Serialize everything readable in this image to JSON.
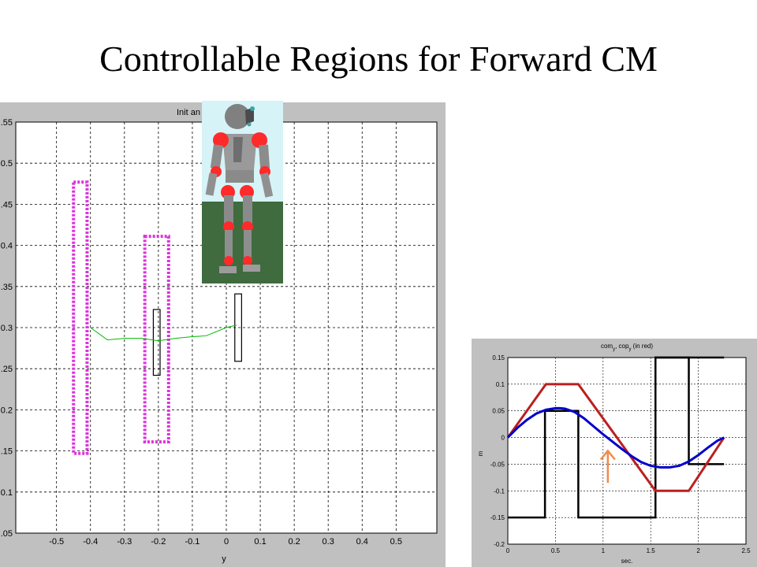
{
  "slide": {
    "title": "Controllable Regions for Forward CM"
  },
  "colors": {
    "frame_gray": "#c0c0c0",
    "region_magenta": "#dd33dd",
    "path_green": "#00bb00",
    "com_blue": "#0000cc",
    "cop_red": "#bb1f1f",
    "step_black": "#000000",
    "arrow_orange": "#f08a4b",
    "robot_sky": "#d6f3f7",
    "robot_ground": "#3f6b3f",
    "robot_joint": "#ff2a2a",
    "robot_body": "#888888"
  },
  "icons": {
    "robot": "humanoid-robot-render",
    "arrow": "up-arrow-icon"
  },
  "chart_data": [
    {
      "type": "line",
      "title": "Init an",
      "xlabel": "y",
      "ylabel": "",
      "xlim": [
        -0.62,
        0.62
      ],
      "ylim": [
        0.05,
        0.55
      ],
      "x_ticks": [
        -0.5,
        -0.4,
        -0.3,
        -0.2,
        -0.1,
        0,
        0.1,
        0.2,
        0.3,
        0.4,
        0.5
      ],
      "x_tick_labels": [
        "-0.5",
        "-0.4",
        "-0.3",
        "-0.2",
        "-0.1",
        "0",
        "0.1",
        "0.2",
        "0.3",
        "0.4",
        "0.5"
      ],
      "y_ticks": [
        0.05,
        0.1,
        0.15,
        0.2,
        0.25,
        0.3,
        0.35,
        0.4,
        0.45,
        0.5,
        0.55
      ],
      "y_tick_labels": [
        ".05",
        "0.1",
        ".15",
        "0.2",
        ".25",
        "0.3",
        ".35",
        "0.4",
        ".45",
        "0.5",
        ".55"
      ],
      "grid": true,
      "series": [
        {
          "x": [
            -0.4,
            -0.35,
            -0.3,
            -0.25,
            -0.2,
            -0.15,
            -0.1,
            -0.06,
            0.0,
            0.03
          ],
          "y": [
            0.3,
            0.285,
            0.287,
            0.287,
            0.284,
            0.287,
            0.289,
            0.29,
            0.3,
            0.303
          ]
        }
      ],
      "regions_dotted": [
        {
          "x": [
            -0.45,
            -0.41
          ],
          "y": [
            0.147,
            0.477
          ]
        },
        {
          "x": [
            -0.24,
            -0.17
          ],
          "y": [
            0.161,
            0.411
          ]
        }
      ],
      "rectangles_solid": [
        {
          "x": [
            -0.215,
            -0.195
          ],
          "y": [
            0.242,
            0.322
          ]
        },
        {
          "x": [
            0.025,
            0.045
          ],
          "y": [
            0.259,
            0.341
          ]
        }
      ]
    },
    {
      "type": "line",
      "title": "com_y, cop_y (in red)",
      "xlabel": "sec.",
      "ylabel": "m",
      "xlim": [
        0,
        2.5
      ],
      "ylim": [
        -0.2,
        0.15
      ],
      "x_ticks": [
        0,
        0.5,
        1,
        1.5,
        2,
        2.5
      ],
      "x_tick_labels": [
        "0",
        "0.5",
        "1",
        "1.5",
        "2",
        "2.5"
      ],
      "y_ticks": [
        -0.2,
        -0.15,
        -0.1,
        -0.05,
        0,
        0.05,
        0.1,
        0.15
      ],
      "y_tick_labels": [
        "-0.2",
        "-0.15",
        "-0.1",
        "-0.05",
        "0",
        "0.05",
        "0.1",
        "0.15"
      ],
      "grid": true,
      "series": [
        {
          "x": [
            0,
            0.1,
            0.2,
            0.3,
            0.4,
            0.5,
            0.55,
            0.6,
            0.7,
            0.8,
            0.9,
            1.0,
            1.1,
            1.2,
            1.3,
            1.4,
            1.5,
            1.6,
            1.7,
            1.8,
            1.9,
            2.0,
            2.1,
            2.2,
            2.27
          ],
          "y": [
            0,
            0.018,
            0.033,
            0.045,
            0.052,
            0.055,
            0.055,
            0.054,
            0.048,
            0.036,
            0.021,
            0.006,
            -0.008,
            -0.022,
            -0.035,
            -0.046,
            -0.053,
            -0.056,
            -0.056,
            -0.053,
            -0.045,
            -0.033,
            -0.019,
            -0.006,
            0
          ]
        },
        {
          "x": [
            0,
            0.4,
            0.74,
            1.55,
            1.9,
            2.27
          ],
          "y": [
            0,
            0.1,
            0.1,
            -0.1,
            -0.1,
            0
          ]
        },
        {
          "x": [
            0,
            0.39,
            0.39,
            0.74,
            0.74,
            1.55,
            1.55,
            1.9,
            1.9,
            2.27
          ],
          "y": [
            -0.15,
            -0.15,
            0.05,
            0.05,
            -0.15,
            -0.15,
            0.15,
            0.15,
            -0.05,
            -0.05
          ]
        },
        {
          "x": [
            1.55,
            1.55,
            1.9,
            1.9,
            2.27
          ],
          "y": [
            -0.05,
            0.15,
            0.15,
            0.15,
            0.15
          ]
        }
      ],
      "annotations": [
        {
          "type": "arrow",
          "x": 1.05,
          "y_from": -0.085,
          "y_to": -0.025
        }
      ]
    }
  ]
}
